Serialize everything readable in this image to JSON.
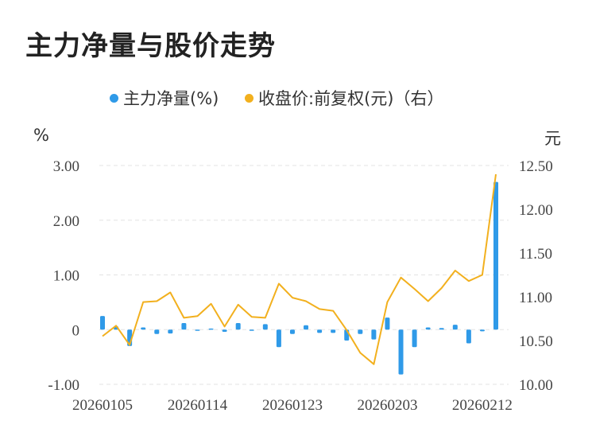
{
  "title": "主力净量与股价走势",
  "colors": {
    "bar": "#2f9ae8",
    "line": "#f2b01e",
    "grid": "#e3e3e3"
  },
  "legend": [
    {
      "label": "主力净量(%)",
      "color": "#2f9ae8"
    },
    {
      "label": "收盘价:前复权(元)（右）",
      "color": "#f2b01e"
    }
  ],
  "units": {
    "left": "%",
    "right": "元"
  },
  "chart_data": {
    "type": "bar+line",
    "x_ticks": [
      "20260105",
      "20260114",
      "20260123",
      "20260203",
      "20260212"
    ],
    "y_left": {
      "ticks": [
        "3.00",
        "2.00",
        "1.00",
        "0",
        "-1.00"
      ],
      "range": [
        -1.0,
        3.0
      ]
    },
    "y_right": {
      "ticks": [
        "12.50",
        "12.00",
        "11.50",
        "11.00",
        "10.50",
        "10.00"
      ],
      "range": [
        10.0,
        12.5
      ]
    },
    "series": [
      {
        "name": "主力净量(%)",
        "type": "bar",
        "axis": "left",
        "values": [
          0.25,
          0.06,
          -0.3,
          0.04,
          -0.08,
          -0.07,
          0.12,
          0.0,
          0.02,
          -0.04,
          0.12,
          0.0,
          0.1,
          -0.32,
          -0.08,
          0.08,
          -0.06,
          -0.06,
          -0.2,
          -0.08,
          -0.18,
          0.22,
          -0.82,
          -0.32,
          0.04,
          0.03,
          0.09,
          -0.25,
          -0.03,
          2.7
        ]
      },
      {
        "name": "收盘价:前复权(元)（右）",
        "type": "line",
        "axis": "right",
        "values": [
          10.55,
          10.67,
          10.45,
          10.94,
          10.95,
          11.05,
          10.76,
          10.78,
          10.92,
          10.66,
          10.91,
          10.77,
          10.76,
          11.15,
          10.99,
          10.95,
          10.86,
          10.84,
          10.62,
          10.36,
          10.23,
          10.94,
          11.22,
          11.09,
          10.95,
          11.1,
          11.3,
          11.18,
          11.25,
          12.4
        ]
      }
    ],
    "grid": true,
    "legend_position": "top"
  }
}
